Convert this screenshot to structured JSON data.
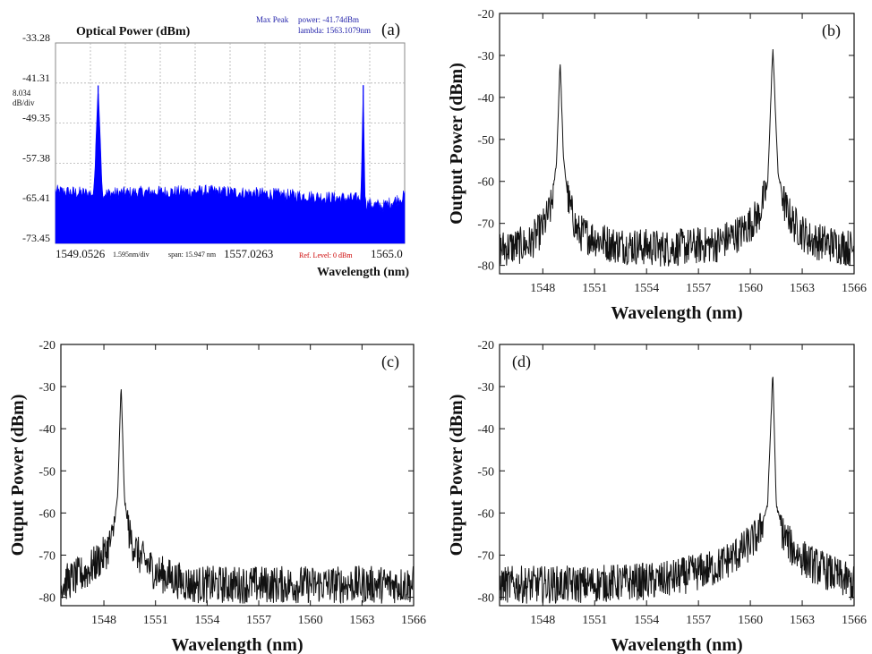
{
  "osa_panel": {
    "label": "(a)",
    "title": "Optical Power (dBm)",
    "scale_value": "8.034",
    "scale_unit": "dB/div",
    "max_peak_label": "Max Peak",
    "peak_power": "power:  -41.74dBm",
    "peak_lambda": "lambda:  1563.1079nm",
    "x_start_label": "1549.0526",
    "x_div_label": "1.595nm/div",
    "span_label": "span: 15.947 nm",
    "x_center_label": "1557.0263",
    "ref_level_label": "Ref. Level: 0 dBm",
    "x_end_label": "1565.0",
    "xlabel": "Wavelength (nm)",
    "y_tick_labels": [
      "-33.28",
      "-41.31",
      "-49.35",
      "-57.38",
      "-65.41",
      "-73.45"
    ],
    "trace_color": "#0000ff",
    "grid_color": "#b0b0b0",
    "info_color": "#2222aa",
    "ref_color": "#cc0000"
  },
  "chart_data": [
    {
      "type": "line",
      "panel": "a",
      "xlim": [
        1549.0526,
        1565.0
      ],
      "ylim": [
        -73.45,
        -33.28
      ],
      "series": [
        {
          "x": [
            1549.0526,
            1550.8,
            1551.0,
            1551.2,
            1553.0,
            1556.0,
            1559.0,
            1562.5,
            1563.0,
            1563.1079,
            1563.2,
            1564.0,
            1565.0
          ],
          "y": [
            -63.0,
            -63.5,
            -41.8,
            -63.5,
            -63.2,
            -63.0,
            -63.6,
            -64.5,
            -64.5,
            -41.74,
            -65.5,
            -66.0,
            -64.0
          ]
        }
      ]
    },
    {
      "type": "line",
      "panel": "b",
      "xlim": [
        1545.5,
        1566
      ],
      "ylim": [
        -82,
        -20
      ],
      "xticks": [
        1548,
        1551,
        1554,
        1557,
        1560,
        1563,
        1566
      ],
      "yticks": [
        -80,
        -70,
        -60,
        -50,
        -40,
        -30,
        -20
      ],
      "xlabel": "Wavelength (nm)",
      "ylabel": "Output Power (dBm)",
      "label": "(b)",
      "series": [
        {
          "x": [
            1545.5,
            1547.2,
            1548.0,
            1548.5,
            1548.8,
            1549.0,
            1549.2,
            1549.5,
            1550.0,
            1552.0,
            1555.0,
            1558.0,
            1559.5,
            1560.5,
            1561.0,
            1561.3,
            1561.6,
            1562.0,
            1562.5,
            1563.5,
            1566.0
          ],
          "y": [
            -76.0,
            -75.0,
            -71.0,
            -66.0,
            -55.0,
            -31.0,
            -55.0,
            -65.0,
            -72.0,
            -75.0,
            -76.0,
            -75.0,
            -72.0,
            -68.0,
            -61.0,
            -28.0,
            -58.0,
            -66.0,
            -70.0,
            -74.0,
            -76.0
          ]
        }
      ]
    },
    {
      "type": "line",
      "panel": "c",
      "xlim": [
        1545.5,
        1566
      ],
      "ylim": [
        -82,
        -20
      ],
      "xticks": [
        1548,
        1551,
        1554,
        1557,
        1560,
        1563,
        1566
      ],
      "yticks": [
        -80,
        -70,
        -60,
        -50,
        -40,
        -30,
        -20
      ],
      "xlabel": "Wavelength (nm)",
      "ylabel": "Output Power (dBm)",
      "label": "(c)",
      "series": [
        {
          "x": [
            1545.5,
            1547.0,
            1548.0,
            1548.5,
            1548.8,
            1549.0,
            1549.2,
            1549.5,
            1550.0,
            1551.0,
            1553.0,
            1556.0,
            1560.0,
            1563.0,
            1566.0
          ],
          "y": [
            -77.0,
            -74.0,
            -70.0,
            -66.0,
            -56.0,
            -29.5,
            -57.0,
            -65.5,
            -70.0,
            -74.0,
            -77.0,
            -77.0,
            -77.0,
            -77.0,
            -77.0
          ]
        }
      ]
    },
    {
      "type": "line",
      "panel": "d",
      "xlim": [
        1545.5,
        1566
      ],
      "ylim": [
        -82,
        -20
      ],
      "xticks": [
        1548,
        1551,
        1554,
        1557,
        1560,
        1563,
        1566
      ],
      "yticks": [
        -80,
        -70,
        -60,
        -50,
        -40,
        -30,
        -20
      ],
      "xlabel": "Wavelength (nm)",
      "ylabel": "Output Power (dBm)",
      "label": "(d)",
      "series": [
        {
          "x": [
            1545.5,
            1550.0,
            1555.0,
            1558.0,
            1559.5,
            1560.5,
            1561.0,
            1561.3,
            1561.5,
            1561.9,
            1562.5,
            1563.5,
            1565.0,
            1566.0
          ],
          "y": [
            -77.0,
            -77.0,
            -76.0,
            -73.0,
            -69.0,
            -65.0,
            -58.0,
            -26.5,
            -58.0,
            -65.0,
            -69.0,
            -72.0,
            -75.0,
            -77.0
          ]
        }
      ]
    }
  ]
}
